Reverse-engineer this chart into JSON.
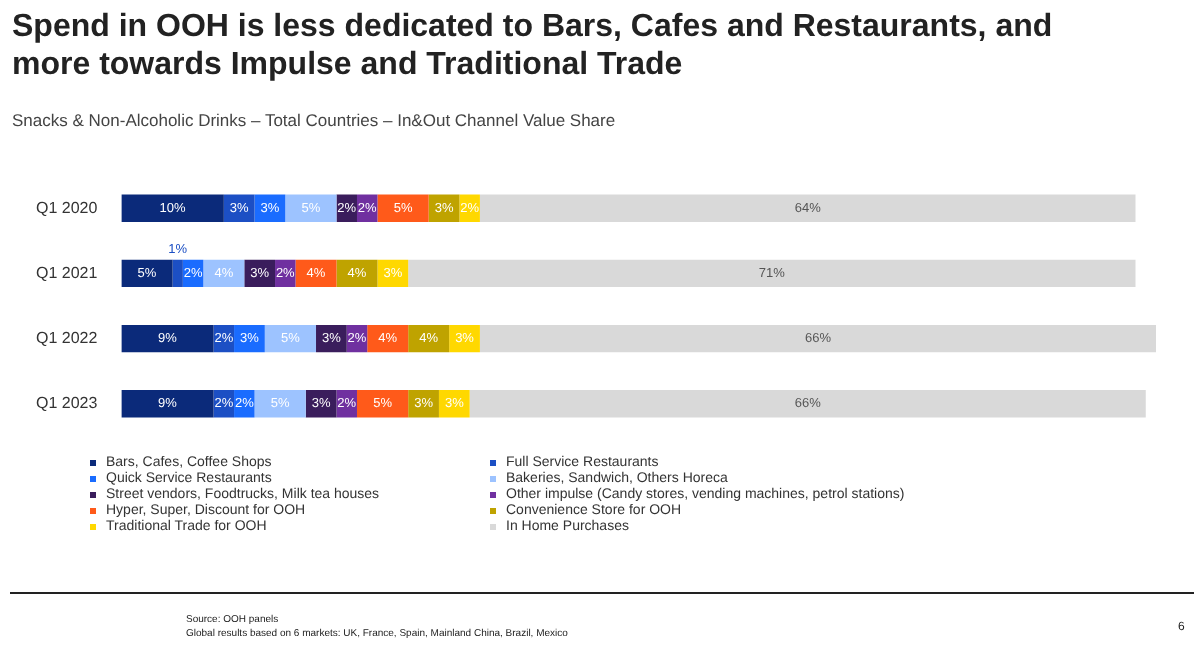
{
  "chart_data": {
    "type": "bar",
    "orientation": "horizontal",
    "stacked": true,
    "title": "Spend in OOH is less dedicated to Bars, Cafes and Restaurants, and more towards Impulse and Traditional Trade",
    "subtitle": "Snacks & Non-Alcoholic Drinks – Total Countries – In&Out Channel Value Share",
    "categories": [
      "Q1 2020",
      "Q1 2021",
      "Q1 2022",
      "Q1 2023"
    ],
    "tick_labels": "y",
    "legend": "bottom",
    "series": [
      {
        "name": "Bars, Cafes, Coffee Shops",
        "color": "#0b2a7a",
        "values": [
          10,
          5,
          9,
          9
        ],
        "value_labels": [
          "10%",
          "5%",
          "9%",
          "9%"
        ]
      },
      {
        "name": "Full Service Restaurants",
        "color": "#1c4fc4",
        "values": [
          3,
          1,
          2,
          2
        ],
        "value_labels": [
          "3%",
          "1%",
          "2%",
          "2%"
        ]
      },
      {
        "name": "Quick Service Restaurants",
        "color": "#1a6cff",
        "values": [
          3,
          2,
          3,
          2
        ],
        "value_labels": [
          "3%",
          "2%",
          "3%",
          "2%"
        ]
      },
      {
        "name": "Bakeries, Sandwich, Others Horeca",
        "color": "#9dc3ff",
        "values": [
          5,
          4,
          5,
          5
        ],
        "value_labels": [
          "5%",
          "4%",
          "5%",
          "5%"
        ]
      },
      {
        "name": "Street vendors, Foodtrucks, Milk tea houses",
        "color": "#3a1d5c",
        "values": [
          2,
          3,
          3,
          3
        ],
        "value_labels": [
          "2%",
          "3%",
          "3%",
          "3%"
        ]
      },
      {
        "name": "Other impulse (Candy stores, vending machines, petrol stations)",
        "color": "#7030a0",
        "values": [
          2,
          2,
          2,
          2
        ],
        "value_labels": [
          "2%",
          "2%",
          "2%",
          "2%"
        ]
      },
      {
        "name": "Hyper, Super, Discount for OOH",
        "color": "#ff5a1a",
        "values": [
          5,
          4,
          4,
          5
        ],
        "value_labels": [
          "5%",
          "4%",
          "4%",
          "5%"
        ]
      },
      {
        "name": "Convenience Store for OOH",
        "color": "#bfa300",
        "values": [
          3,
          4,
          4,
          3
        ],
        "value_labels": [
          "3%",
          "4%",
          "4%",
          "3%"
        ]
      },
      {
        "name": "Traditional Trade for OOH",
        "color": "#ffd800",
        "values": [
          2,
          3,
          3,
          3
        ],
        "value_labels": [
          "2%",
          "3%",
          "3%",
          "3%"
        ]
      },
      {
        "name": "In Home Purchases",
        "color": "#d9d9d9",
        "values": [
          64,
          71,
          66,
          66
        ],
        "value_labels": [
          "64%",
          "71%",
          "66%",
          "66%"
        ]
      }
    ],
    "annotations": [
      "Source: OOH panels",
      "Global results based on 6 markets: UK, France, Spain, Mainland China, Brazil, Mexico",
      "6"
    ]
  }
}
